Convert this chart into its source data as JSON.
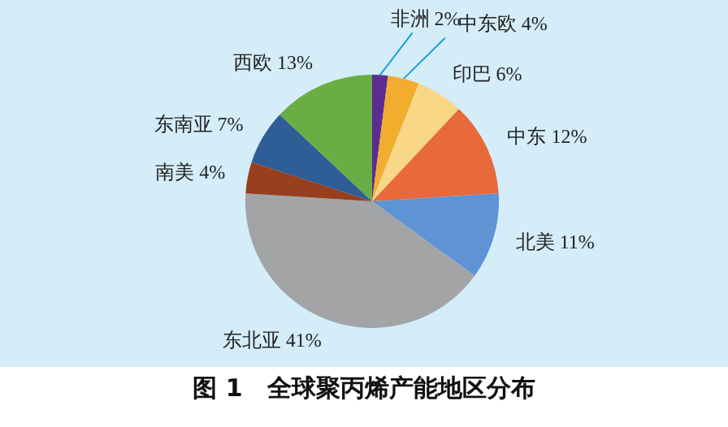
{
  "chart_data": {
    "type": "pie",
    "title": "图 1　全球聚丙烯产能地区分布",
    "categories": [
      "非洲",
      "中东欧",
      "印巴",
      "中东",
      "北美",
      "东北亚",
      "南美",
      "东南亚",
      "西欧"
    ],
    "values": [
      2,
      4,
      6,
      12,
      11,
      41,
      4,
      7,
      13
    ],
    "colors": [
      "#5b2d91",
      "#f2ac2e",
      "#f8d786",
      "#e8693a",
      "#5e93d4",
      "#a2a4a6",
      "#983f1f",
      "#2f5d96",
      "#6aad45"
    ],
    "data_labels": true,
    "value_labels": [
      "2%",
      "4%",
      "6%",
      "12%",
      "11%",
      "41%",
      "4%",
      "7%",
      "13%"
    ],
    "legend": false
  }
}
